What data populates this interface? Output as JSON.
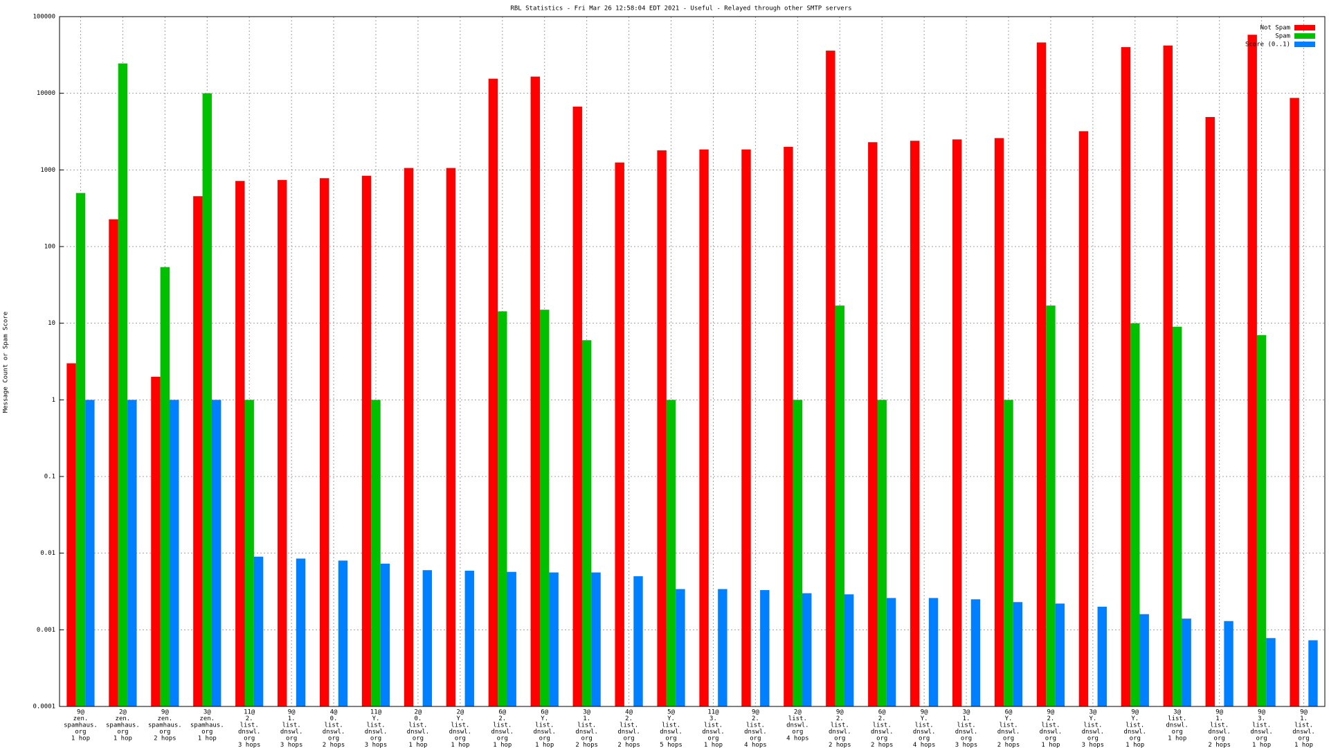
{
  "chart_data": {
    "type": "bar",
    "log_scale": true,
    "grid": true,
    "legend": "top-right",
    "title": "RBL Statistics - Fri Mar 26 12:58:04 EDT 2021 - Useful - Relayed through other SMTP servers",
    "y_label": "Message Count or Spam Score",
    "ylim": [
      0.0001,
      100000
    ],
    "yticks": [
      0.0001,
      0.001,
      0.01,
      0.1,
      1,
      10,
      100,
      1000,
      10000,
      100000
    ],
    "categories": [
      [
        "9@",
        "zen.",
        "spamhaus.",
        "org",
        "1 hop"
      ],
      [
        "2@",
        "zen.",
        "spamhaus.",
        "org",
        "1 hop"
      ],
      [
        "9@",
        "zen.",
        "spamhaus.",
        "org",
        "2 hops"
      ],
      [
        "3@",
        "zen.",
        "spamhaus.",
        "org",
        "1 hop"
      ],
      [
        "11@",
        "2.",
        "list.",
        "dnswl.",
        "org",
        "3 hops"
      ],
      [
        "9@",
        "1.",
        "list.",
        "dnswl.",
        "org",
        "3 hops"
      ],
      [
        "4@",
        "0.",
        "list.",
        "dnswl.",
        "org",
        "2 hops"
      ],
      [
        "11@",
        "Y.",
        "list.",
        "dnswl.",
        "org",
        "3 hops"
      ],
      [
        "2@",
        "0.",
        "list.",
        "dnswl.",
        "org",
        "1 hop"
      ],
      [
        "2@",
        "Y.",
        "list.",
        "dnswl.",
        "org",
        "1 hop"
      ],
      [
        "6@",
        "2.",
        "list.",
        "dnswl.",
        "org",
        "1 hop"
      ],
      [
        "6@",
        "Y.",
        "list.",
        "dnswl.",
        "org",
        "1 hop"
      ],
      [
        "3@",
        "1.",
        "list.",
        "dnswl.",
        "org",
        "2 hops"
      ],
      [
        "4@",
        "2.",
        "list.",
        "dnswl.",
        "org",
        "2 hops"
      ],
      [
        "5@",
        "Y.",
        "list.",
        "dnswl.",
        "org",
        "5 hops"
      ],
      [
        "11@",
        "3.",
        "list.",
        "dnswl.",
        "org",
        "1 hop"
      ],
      [
        "9@",
        "2.",
        "list.",
        "dnswl.",
        "org",
        "4 hops"
      ],
      [
        "2@",
        "list.",
        "dnswl.",
        "org",
        "4 hops"
      ],
      [
        "9@",
        "2.",
        "list.",
        "dnswl.",
        "org",
        "2 hops"
      ],
      [
        "6@",
        "2.",
        "list.",
        "dnswl.",
        "org",
        "2 hops"
      ],
      [
        "9@",
        "Y.",
        "list.",
        "dnswl.",
        "org",
        "4 hops"
      ],
      [
        "3@",
        "1.",
        "list.",
        "dnswl.",
        "org",
        "3 hops"
      ],
      [
        "6@",
        "Y.",
        "list.",
        "dnswl.",
        "org",
        "2 hops"
      ],
      [
        "9@",
        "2.",
        "list.",
        "dnswl.",
        "org",
        "1 hop"
      ],
      [
        "3@",
        "Y.",
        "list.",
        "dnswl.",
        "org",
        "3 hops"
      ],
      [
        "9@",
        "Y.",
        "list.",
        "dnswl.",
        "org",
        "1 hop"
      ],
      [
        "3@",
        "list.",
        "dnswl.",
        "org",
        "1 hop"
      ],
      [
        "9@",
        "1.",
        "list.",
        "dnswl.",
        "org",
        "2 hops"
      ],
      [
        "9@",
        "3.",
        "list.",
        "dnswl.",
        "org",
        "1 hop"
      ],
      [
        "9@",
        "1.",
        "list.",
        "dnswl.",
        "org",
        "1 hop"
      ]
    ],
    "series": [
      {
        "name": "Not Spam",
        "color": "#ff0000",
        "values": [
          3,
          227,
          2,
          454,
          718,
          740,
          780,
          840,
          1060,
          1060,
          15500,
          16500,
          6700,
          1250,
          1800,
          1850,
          1850,
          2000,
          36000,
          2300,
          2400,
          2500,
          2600,
          46000,
          3200,
          40000,
          42000,
          4900,
          58000,
          8700
        ]
      },
      {
        "name": "Spam",
        "color": "#00c000",
        "values": [
          500,
          24500,
          54,
          10000,
          1,
          null,
          null,
          1,
          null,
          null,
          14.3,
          15,
          6,
          null,
          1,
          null,
          null,
          1,
          17,
          1,
          null,
          null,
          1,
          17,
          null,
          10,
          9,
          null,
          7,
          null
        ]
      },
      {
        "name": "Score (0..1)",
        "color": "#0080ff",
        "values": [
          1,
          1,
          1,
          1,
          0.009,
          0.0085,
          0.008,
          0.0073,
          0.006,
          0.0059,
          0.0057,
          0.0056,
          0.0056,
          0.005,
          0.0034,
          0.0034,
          0.0033,
          0.003,
          0.0029,
          0.0026,
          0.0026,
          0.0025,
          0.0023,
          0.0022,
          0.002,
          0.0016,
          0.0014,
          0.0013,
          0.00078,
          0.00073
        ]
      }
    ]
  }
}
